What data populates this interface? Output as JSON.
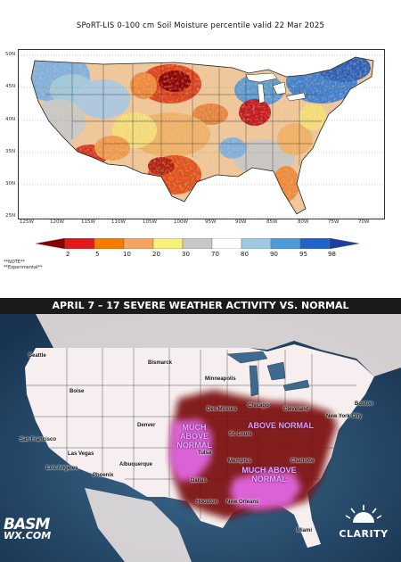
{
  "top_map": {
    "title": "SPoRT-LIS 0-100 cm Soil Moisture percentile valid 22 Mar 2025",
    "lat_labels": [
      "50N",
      "45N",
      "40N",
      "35N",
      "30N",
      "25N"
    ],
    "lon_labels": [
      "125W",
      "120W",
      "115W",
      "110W",
      "105W",
      "100W",
      "95W",
      "90W",
      "85W",
      "80W",
      "75W",
      "70W"
    ],
    "colorbar": {
      "labels": [
        "2",
        "5",
        "10",
        "20",
        "30",
        "70",
        "80",
        "90",
        "95",
        "98"
      ],
      "colors": [
        "#8b0000",
        "#e31a1c",
        "#f57c00",
        "#f4a460",
        "#f7f07a",
        "#c8c8c8",
        "#ffffff",
        "#9ecae1",
        "#4f9bd9",
        "#2363c9",
        "#1c3f9e"
      ]
    },
    "note_line1": "**NOTE**",
    "note_line2": "**Experimental**"
  },
  "bottom_map": {
    "title": "APRIL 7 – 17 SEVERE WEATHER ACTIVITY VS. NORMAL",
    "region_labels": {
      "much_above_west_1": "MUCH ABOVE",
      "much_above_west_2": "NORMAL",
      "above_normal": "ABOVE NORMAL",
      "much_above_south_1": "MUCH ABOVE",
      "much_above_south_2": "NORMAL"
    },
    "colors": {
      "land": "#f7efef",
      "ocean": "#24466b",
      "above_normal": "#7a1010",
      "much_above_normal": "#e066e0"
    },
    "cities": {
      "seattle": "Seattle",
      "boise": "Boise",
      "bismarck": "Bismarck",
      "minneapolis": "Minneapolis",
      "des_moines": "Des Moines",
      "chicago": "Chicago",
      "cleveland": "Cleveland",
      "boston": "Boston",
      "new_york_city": "New York City",
      "san_francisco": "San Francisco",
      "las_vegas": "Las Vegas",
      "los_angeles": "Los Angeles",
      "phoenix": "Phoenix",
      "denver": "Denver",
      "albuquerque": "Albuquerque",
      "tulsa": "Tulsa",
      "st_louis": "St. Louis",
      "charlotte": "Charlotte",
      "memphis": "Memphis",
      "dallas": "Dallas",
      "houston": "Houston",
      "new_orleans": "New Orleans",
      "miami": "Miami"
    }
  },
  "logos": {
    "basm_top": "BASM",
    "basm_bottom": "WX.COM",
    "clarity": "CLARITY"
  }
}
